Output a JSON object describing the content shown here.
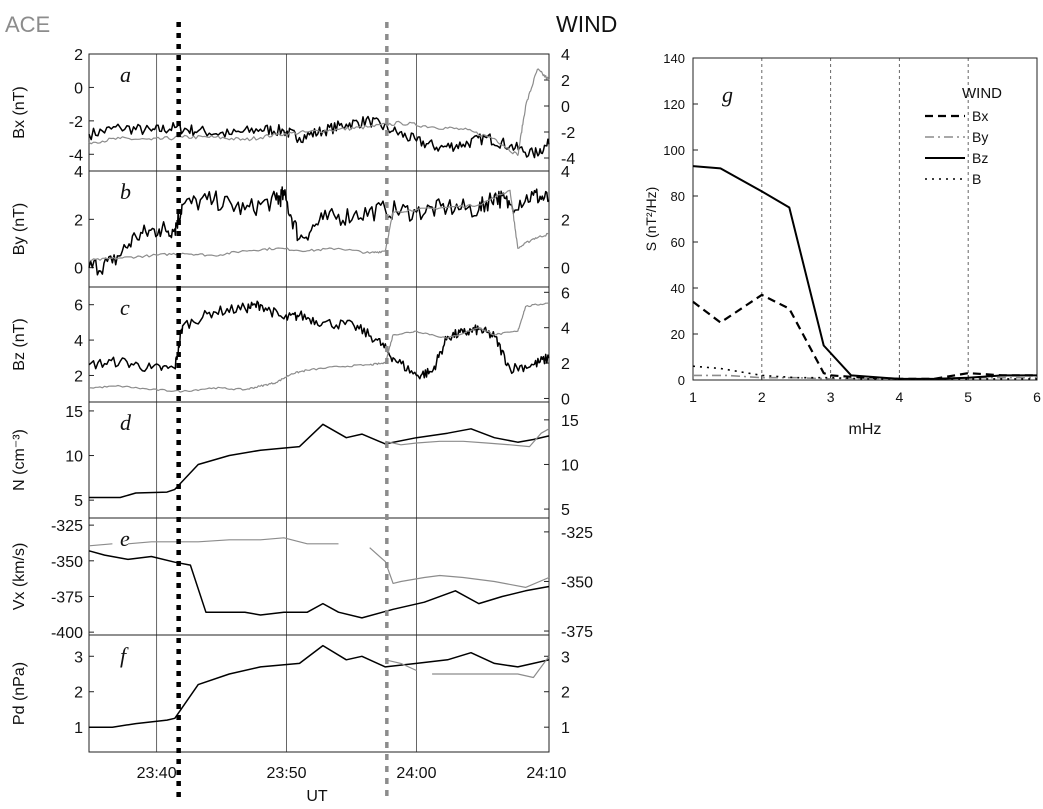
{
  "header": {
    "left_title": "ACE",
    "right_title": "WIND"
  },
  "colors": {
    "wind": "#000000",
    "ace": "#8c8c8c",
    "grid": "#555555"
  },
  "time_axis": {
    "label": "UT",
    "range": [
      23.58,
      24.17
    ],
    "ticks": [
      {
        "v": 23.6667,
        "label": "23:40"
      },
      {
        "v": 23.8333,
        "label": "23:50"
      },
      {
        "v": 24.0,
        "label": "24:00"
      },
      {
        "v": 24.1667,
        "label": "24:10"
      }
    ],
    "event_lines": [
      {
        "t": 23.695,
        "color": "#000000"
      },
      {
        "t": 23.962,
        "color": "#8c8c8c"
      }
    ]
  },
  "chart_data": [
    {
      "type": "line",
      "panel_letter": "a",
      "ylabel": "Bx (nT)",
      "ylim": [
        -5,
        2
      ],
      "yticks": [
        "2",
        "0",
        "-2",
        "-4"
      ],
      "ytick_values": [
        2,
        0,
        -2,
        -4
      ],
      "ylim_right": [
        -5,
        4
      ],
      "yticks_right": [
        "4",
        "2",
        "0",
        "-2",
        "-4"
      ],
      "ytick_values_right": [
        4,
        2,
        0,
        -2,
        -4
      ],
      "series": [
        {
          "axis": "left",
          "color": "#000000",
          "noise": 0.35,
          "x": [
            23.58,
            23.62,
            23.66,
            23.69,
            23.72,
            23.76,
            23.8,
            23.83,
            23.85,
            23.88,
            23.91,
            23.94,
            23.97,
            24.0,
            24.03,
            24.06,
            24.09,
            24.12,
            24.15,
            24.17
          ],
          "y": [
            -2.8,
            -2.4,
            -2.6,
            -2.4,
            -2.6,
            -2.8,
            -2.5,
            -2.6,
            -3.0,
            -2.6,
            -2.2,
            -2.0,
            -2.6,
            -3.2,
            -3.6,
            -3.4,
            -3.0,
            -3.5,
            -4.0,
            -3.4
          ]
        },
        {
          "axis": "right",
          "color": "#8c8c8c",
          "noise": 0.15,
          "x": [
            23.58,
            23.62,
            23.66,
            23.7,
            23.74,
            23.78,
            23.82,
            23.86,
            23.9,
            23.94,
            23.98,
            24.02,
            24.06,
            24.1,
            24.13,
            24.14,
            24.155,
            24.17
          ],
          "y": [
            -2.8,
            -2.5,
            -2.6,
            -2.4,
            -2.4,
            -2.6,
            -2.2,
            -2.0,
            -1.8,
            -1.6,
            -1.3,
            -1.6,
            -1.8,
            -2.5,
            -3.8,
            0.0,
            2.8,
            2.0
          ]
        }
      ]
    },
    {
      "type": "line",
      "panel_letter": "b",
      "ylabel": "By (nT)",
      "ylim": [
        -0.8,
        4
      ],
      "yticks": [
        "4",
        "2",
        "0"
      ],
      "ytick_values": [
        4,
        2,
        0
      ],
      "ylim_right": [
        -0.8,
        4
      ],
      "yticks_right": [
        "4",
        "2",
        "0"
      ],
      "ytick_values_right": [
        4,
        2,
        0
      ],
      "series": [
        {
          "axis": "left",
          "color": "#000000",
          "noise": 0.4,
          "x": [
            23.58,
            23.61,
            23.64,
            23.67,
            23.69,
            23.7,
            23.74,
            23.78,
            23.82,
            23.83,
            23.85,
            23.88,
            23.92,
            23.96,
            24.0,
            24.04,
            24.08,
            24.1,
            24.12,
            24.15,
            24.17
          ],
          "y": [
            0.0,
            0.2,
            1.3,
            1.6,
            1.6,
            2.6,
            2.8,
            2.4,
            2.8,
            3.0,
            1.2,
            2.0,
            2.2,
            2.4,
            2.3,
            2.5,
            2.4,
            3.0,
            2.6,
            3.0,
            2.8
          ]
        },
        {
          "axis": "right",
          "color": "#8c8c8c",
          "noise": 0.05,
          "x": [
            23.58,
            23.62,
            23.66,
            23.7,
            23.74,
            23.78,
            23.82,
            23.86,
            23.9,
            23.94,
            23.96,
            23.97,
            24.0,
            24.04,
            24.08,
            24.12,
            24.13,
            24.15,
            24.17
          ],
          "y": [
            0.3,
            0.4,
            0.5,
            0.6,
            0.5,
            0.7,
            0.8,
            0.7,
            0.8,
            0.6,
            0.7,
            2.3,
            2.4,
            2.5,
            2.6,
            3.2,
            0.8,
            1.2,
            1.4
          ]
        }
      ]
    },
    {
      "type": "line",
      "panel_letter": "c",
      "ylabel": "Bz (nT)",
      "ylim": [
        0.5,
        7
      ],
      "yticks": [
        "6",
        "4",
        "2"
      ],
      "ytick_values": [
        6,
        4,
        2
      ],
      "ylim_right": [
        -0.2,
        6.3
      ],
      "yticks_right": [
        "6",
        "4",
        "2",
        "0"
      ],
      "ytick_values_right": [
        6,
        4,
        2,
        0
      ],
      "series": [
        {
          "axis": "left",
          "color": "#000000",
          "noise": 0.3,
          "x": [
            23.58,
            23.62,
            23.66,
            23.69,
            23.7,
            23.74,
            23.78,
            23.8,
            23.83,
            23.85,
            23.88,
            23.92,
            23.95,
            23.97,
            24.0,
            24.02,
            24.04,
            24.06,
            24.08,
            24.1,
            24.12,
            24.15,
            24.17
          ],
          "y": [
            2.6,
            2.8,
            2.4,
            2.4,
            4.8,
            5.6,
            5.8,
            6.0,
            5.2,
            5.4,
            5.0,
            4.8,
            4.0,
            3.0,
            2.0,
            2.2,
            4.2,
            4.4,
            4.6,
            4.2,
            2.4,
            2.6,
            3.0
          ]
        },
        {
          "axis": "right",
          "color": "#8c8c8c",
          "noise": 0.05,
          "x": [
            23.58,
            23.62,
            23.66,
            23.7,
            23.74,
            23.78,
            23.8,
            23.82,
            23.84,
            23.86,
            23.9,
            23.94,
            23.96,
            23.97,
            24.0,
            24.04,
            24.08,
            24.1,
            24.13,
            24.14,
            24.17
          ],
          "y": [
            0.6,
            0.7,
            0.5,
            0.4,
            0.6,
            0.5,
            0.7,
            0.9,
            1.4,
            1.6,
            1.8,
            1.9,
            2.0,
            3.6,
            3.8,
            3.4,
            4.0,
            3.6,
            3.8,
            5.2,
            5.4
          ]
        }
      ]
    },
    {
      "type": "line",
      "panel_letter": "d",
      "ylabel": "N (cm⁻³)",
      "ylim": [
        3,
        16
      ],
      "yticks": [
        "15",
        "10",
        "5"
      ],
      "ytick_values": [
        15,
        10,
        5
      ],
      "ylim_right": [
        4,
        17
      ],
      "yticks_right": [
        "15",
        "10",
        "5"
      ],
      "ytick_values_right": [
        15,
        10,
        5
      ],
      "series": [
        {
          "axis": "left",
          "color": "#000000",
          "noise": 0,
          "x": [
            23.58,
            23.62,
            23.64,
            23.68,
            23.69,
            23.72,
            23.76,
            23.8,
            23.85,
            23.88,
            23.91,
            23.93,
            23.96,
            24.0,
            24.04,
            24.07,
            24.1,
            24.13,
            24.15,
            24.17
          ],
          "y": [
            5.3,
            5.3,
            5.8,
            5.9,
            6.2,
            9.0,
            10.0,
            10.6,
            11.0,
            13.5,
            12.0,
            12.4,
            11.3,
            12.0,
            12.5,
            13.0,
            12.0,
            11.5,
            11.8,
            12.2
          ]
        },
        {
          "axis": "right",
          "color": "#8c8c8c",
          "noise": 0,
          "x": [
            23.96,
            23.98,
            24.0,
            24.03,
            24.06,
            24.09,
            24.12,
            24.145,
            24.16,
            24.17
          ],
          "y": [
            12.6,
            12.2,
            12.4,
            12.6,
            12.6,
            12.4,
            12.2,
            12.0,
            13.5,
            14.0
          ]
        }
      ]
    },
    {
      "type": "line",
      "panel_letter": "e",
      "ylabel": "Vx (km/s)",
      "ylim": [
        -402,
        -320
      ],
      "yticks": [
        "-325",
        "-350",
        "-375",
        "-400"
      ],
      "ytick_values": [
        -325,
        -350,
        -375,
        -400
      ],
      "ylim_right": [
        -377,
        -318
      ],
      "yticks_right": [
        "-325",
        "-350",
        "-375"
      ],
      "ytick_values_right": [
        -325,
        -350,
        -375
      ],
      "series": [
        {
          "axis": "left",
          "color": "#000000",
          "noise": 0,
          "x": [
            23.58,
            23.6,
            23.63,
            23.66,
            23.69,
            23.71,
            23.73,
            23.78,
            23.8,
            23.83,
            23.86,
            23.88,
            23.9,
            23.93,
            23.97,
            24.01,
            24.05,
            24.08,
            24.11,
            24.14,
            24.17
          ],
          "y": [
            -343,
            -346,
            -349,
            -347,
            -351,
            -353,
            -386,
            -386,
            -388,
            -386,
            -386,
            -380,
            -386,
            -390,
            -384,
            -379,
            -371,
            -380,
            -375,
            -371,
            -368
          ]
        },
        {
          "axis": "right",
          "color": "#8c8c8c",
          "noise": 0,
          "gaps": [
            2,
            10
          ],
          "x": [
            23.58,
            23.61,
            23.63,
            23.66,
            23.72,
            23.76,
            23.8,
            23.83,
            23.86,
            23.9,
            23.94,
            23.96,
            23.97,
            23.98,
            24.01,
            24.03,
            24.06,
            24.1,
            24.14,
            24.17
          ],
          "y": [
            -332,
            -331,
            -331,
            -330,
            -330,
            -329,
            -329,
            -328,
            -331,
            -331,
            -333,
            -340,
            -351,
            -350,
            -348,
            -347,
            -348,
            -350,
            -353,
            -348
          ]
        }
      ]
    },
    {
      "type": "line",
      "panel_letter": "f",
      "ylabel": "Pd (nPa)",
      "ylim": [
        0.3,
        3.6
      ],
      "yticks": [
        "3",
        "2",
        "1"
      ],
      "ytick_values": [
        3,
        2,
        1
      ],
      "ylim_right": [
        0.3,
        3.6
      ],
      "yticks_right": [
        "3",
        "2",
        "1"
      ],
      "ytick_values_right": [
        3,
        2,
        1
      ],
      "series": [
        {
          "axis": "left",
          "color": "#000000",
          "noise": 0,
          "x": [
            23.58,
            23.61,
            23.64,
            23.68,
            23.69,
            23.72,
            23.76,
            23.8,
            23.85,
            23.88,
            23.91,
            23.93,
            23.96,
            24.0,
            24.04,
            24.07,
            24.1,
            24.13,
            24.15,
            24.17
          ],
          "y": [
            1.0,
            1.0,
            1.1,
            1.2,
            1.25,
            2.2,
            2.5,
            2.7,
            2.8,
            3.3,
            2.9,
            3.0,
            2.7,
            2.8,
            2.9,
            3.1,
            2.8,
            2.7,
            2.8,
            2.9
          ]
        },
        {
          "axis": "right",
          "color": "#8c8c8c",
          "noise": 0,
          "gaps": [
            3
          ],
          "x": [
            23.96,
            23.98,
            24.0,
            24.02,
            24.04,
            24.07,
            24.1,
            24.13,
            24.15,
            24.17
          ],
          "y": [
            2.9,
            2.8,
            2.6,
            2.5,
            2.5,
            2.5,
            2.5,
            2.5,
            2.4,
            3.0
          ]
        }
      ]
    },
    {
      "type": "line",
      "panel_letter": "g",
      "title": "WIND",
      "xlabel": "mHz",
      "ylabel": "S (nT²/Hz)",
      "xlim": [
        1,
        6
      ],
      "ylim": [
        0,
        140
      ],
      "xticks": [
        1,
        2,
        3,
        4,
        5,
        6
      ],
      "yticks": [
        0,
        20,
        40,
        60,
        80,
        100,
        120,
        140
      ],
      "vgrid": [
        2,
        3,
        4,
        5
      ],
      "series": [
        {
          "name": "Bx",
          "style": "dashed",
          "color": "#000000",
          "width": 2.2,
          "x": [
            1,
            1.4,
            2.0,
            2.4,
            2.9,
            3.0,
            3.5,
            4.0,
            4.5,
            5.0,
            5.5,
            6.0
          ],
          "y": [
            34,
            25,
            37,
            31,
            3,
            2,
            1,
            0.5,
            0.5,
            3,
            2,
            2
          ]
        },
        {
          "name": "By",
          "style": "dashdot",
          "color": "#8c8c8c",
          "width": 1.6,
          "x": [
            1,
            1.5,
            2.0,
            2.5,
            3.0,
            3.5,
            4.0,
            4.5,
            5.0,
            5.5,
            6.0
          ],
          "y": [
            2,
            2,
            1,
            1,
            0.5,
            0.5,
            0.5,
            0.5,
            1,
            1,
            1
          ]
        },
        {
          "name": "Bz",
          "style": "solid",
          "color": "#000000",
          "width": 2.0,
          "x": [
            1,
            1.4,
            2.0,
            2.4,
            2.9,
            3.3,
            4.0,
            4.5,
            5.0,
            5.5,
            6.0
          ],
          "y": [
            93,
            92,
            82,
            75,
            15,
            2,
            0.5,
            0.5,
            1,
            2,
            2
          ]
        },
        {
          "name": "B",
          "style": "dotted",
          "color": "#000000",
          "width": 1.6,
          "x": [
            1,
            1.4,
            2.0,
            2.5,
            3.0,
            3.5,
            4.0,
            5.0,
            6.0
          ],
          "y": [
            6,
            5,
            2,
            1,
            1,
            0.5,
            0.5,
            0.5,
            0.5
          ]
        }
      ],
      "legend": {
        "title": "WIND",
        "placement": "top-right",
        "entries": [
          "Bx",
          "By",
          "Bz",
          "B"
        ]
      }
    }
  ]
}
